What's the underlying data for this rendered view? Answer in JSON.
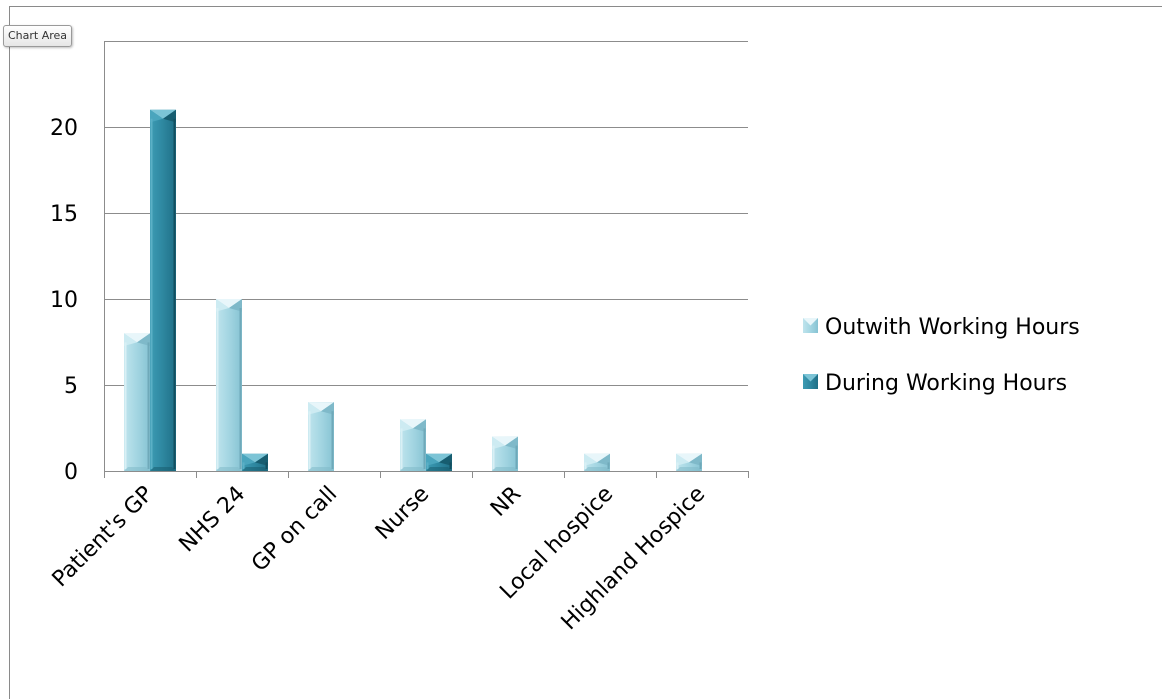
{
  "tooltip": "Chart Area",
  "chart_data": {
    "type": "bar",
    "categories": [
      "Patient's GP",
      "NHS 24",
      "GP on call",
      "Nurse",
      "NR",
      "Local hospice",
      "Highland Hospice"
    ],
    "series": [
      {
        "name": "Outwith Working Hours",
        "values": [
          8,
          10,
          4,
          3,
          2,
          1,
          1
        ],
        "color": "#9fd3e0"
      },
      {
        "name": "During Working Hours",
        "values": [
          21,
          1,
          0,
          1,
          0,
          0,
          0
        ],
        "color": "#2f89a2"
      }
    ],
    "yticks": [
      0,
      5,
      10,
      15,
      20
    ],
    "ylim": [
      0,
      25
    ],
    "title": "",
    "xlabel": "",
    "ylabel": "",
    "grid": true,
    "legend_position": "right"
  }
}
